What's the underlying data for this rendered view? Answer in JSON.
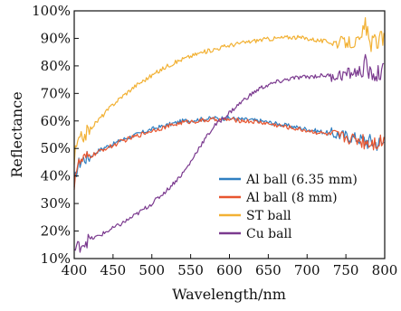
{
  "chart_data": {
    "type": "line",
    "xlabel": "Wavelength/nm",
    "ylabel": "Reflectance",
    "xlim": [
      400,
      800
    ],
    "ylim": [
      10,
      100
    ],
    "x_ticks": [
      "400",
      "450",
      "500",
      "550",
      "600",
      "650",
      "700",
      "750",
      "800"
    ],
    "y_ticks": [
      "10%",
      "20%",
      "30%",
      "40%",
      "50%",
      "60%",
      "70%",
      "80%",
      "90%",
      "100%"
    ],
    "grid": false,
    "legend_position": "bottom-right",
    "series": [
      {
        "name": "Al ball (6.35 mm)",
        "color": "#2f7fc1",
        "x": [
          400,
          402,
          405,
          410,
          420,
          430,
          440,
          450,
          460,
          480,
          500,
          520,
          540,
          560,
          580,
          600,
          620,
          640,
          660,
          680,
          700,
          720,
          740,
          760,
          780,
          790,
          800
        ],
        "y": [
          34,
          41,
          44,
          46,
          47,
          49,
          50.5,
          51.5,
          53,
          55,
          57,
          58.5,
          60,
          60.5,
          61,
          61,
          60.5,
          60,
          59,
          58,
          57,
          56,
          55,
          54,
          52.5,
          52,
          52
        ]
      },
      {
        "name": "Al ball (8 mm)",
        "color": "#e8552f",
        "x": [
          400,
          402,
          405,
          410,
          420,
          430,
          440,
          450,
          460,
          480,
          500,
          520,
          540,
          560,
          580,
          600,
          620,
          640,
          660,
          680,
          700,
          720,
          740,
          760,
          780,
          790,
          800
        ],
        "y": [
          37,
          42,
          44,
          45.5,
          47,
          48.5,
          50,
          51,
          52.5,
          54.5,
          56.5,
          58,
          59.5,
          60,
          60.5,
          60.5,
          60,
          59.5,
          58.5,
          57.5,
          56.5,
          55.5,
          54.5,
          53.5,
          52.5,
          52.5,
          53
        ]
      },
      {
        "name": "ST ball",
        "color": "#f2b134",
        "x": [
          400,
          402,
          405,
          410,
          420,
          430,
          440,
          450,
          460,
          480,
          500,
          520,
          540,
          560,
          580,
          600,
          620,
          640,
          660,
          680,
          700,
          720,
          740,
          760,
          770,
          775,
          780,
          790,
          800
        ],
        "y": [
          45,
          50,
          52,
          54,
          57,
          60,
          63,
          66,
          68.5,
          73,
          76.5,
          80,
          82.5,
          84.5,
          86,
          87.5,
          88.5,
          89.5,
          90,
          90.5,
          90,
          89,
          88.5,
          88.5,
          89,
          96,
          88,
          89,
          90
        ]
      },
      {
        "name": "Cu ball",
        "color": "#7b3a8f",
        "x": [
          400,
          410,
          420,
          430,
          440,
          450,
          460,
          480,
          500,
          520,
          540,
          550,
          560,
          570,
          580,
          600,
          620,
          640,
          660,
          680,
          700,
          720,
          740,
          760,
          770,
          775,
          780,
          790,
          800
        ],
        "y": [
          13,
          15.5,
          17,
          18,
          19.5,
          21,
          22.5,
          26,
          30,
          35,
          41,
          45,
          50,
          54,
          58,
          63,
          68,
          72,
          74,
          75.5,
          76,
          76.5,
          76.5,
          77.5,
          78,
          81,
          77,
          77,
          78
        ]
      }
    ]
  }
}
